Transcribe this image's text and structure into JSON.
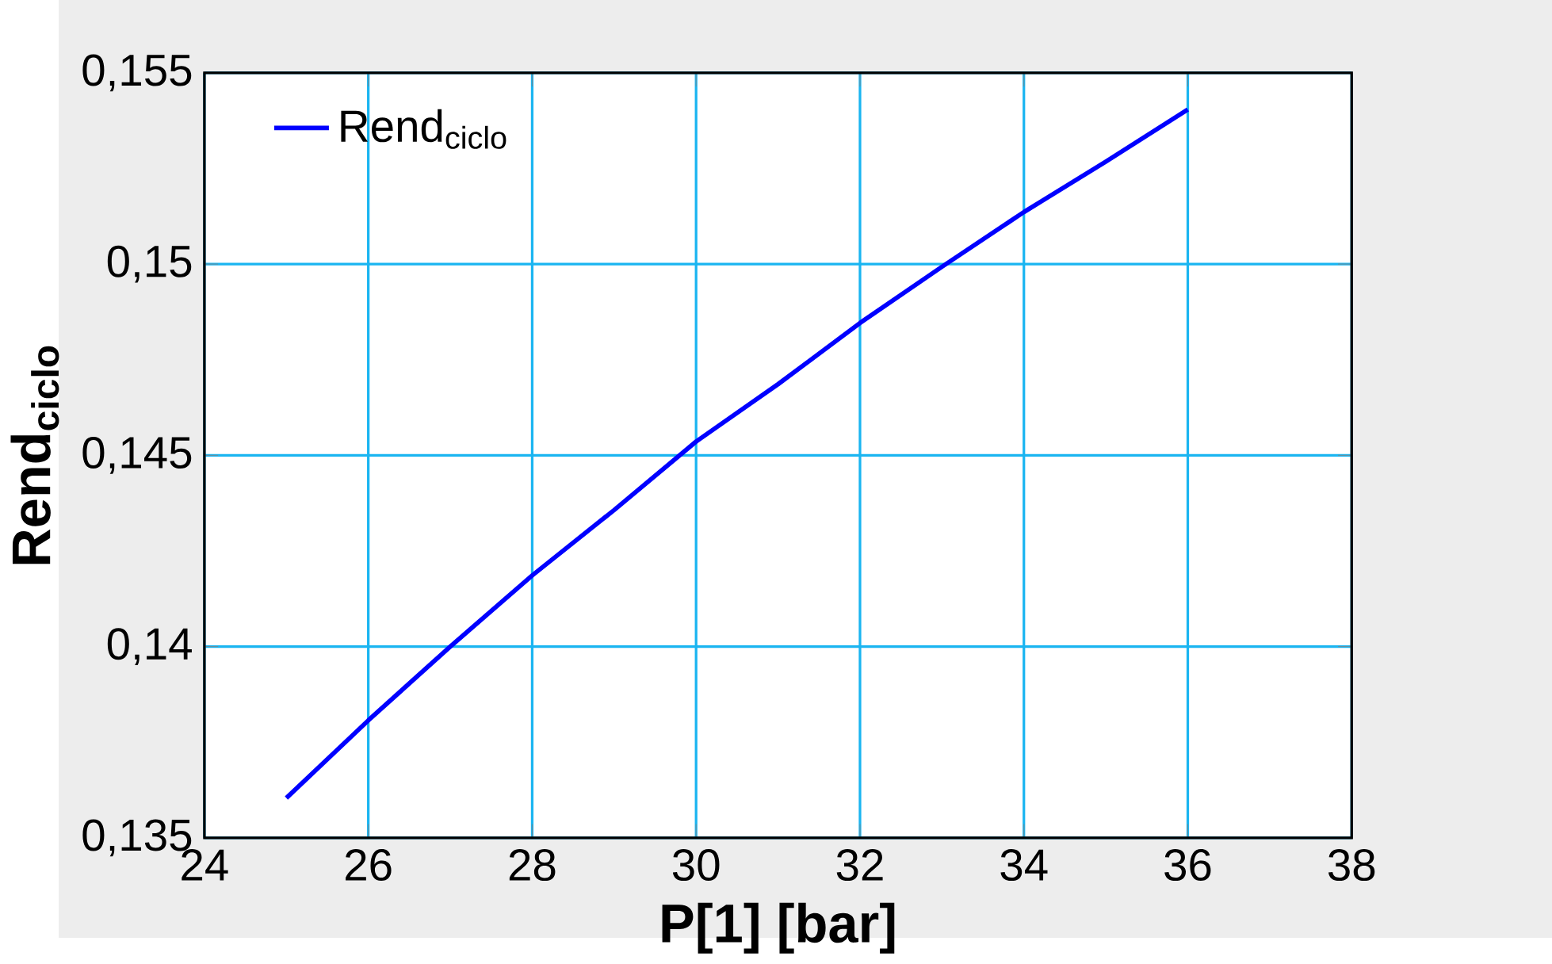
{
  "chart_data": {
    "type": "line",
    "xlabel": "P[1]  [bar]",
    "ylabel": "Rend$_{ciclo}$",
    "x": [
      25,
      26,
      27,
      28,
      29,
      30,
      31,
      32,
      33,
      34,
      35,
      36
    ],
    "series": [
      {
        "name": "Rend$_{ciclo}$",
        "color": "#0000ff",
        "values": [
          0.13604,
          0.13807,
          0.14,
          0.14186,
          0.14357,
          0.14536,
          0.14686,
          0.14846,
          0.14993,
          0.15136,
          0.15268,
          0.15404
        ]
      }
    ],
    "xlim": [
      24,
      38
    ],
    "ylim": [
      0.135,
      0.155
    ],
    "xticks": [
      24,
      26,
      28,
      30,
      32,
      34,
      36,
      38
    ],
    "yticks": [
      {
        "value": 0.135,
        "label": "0,135"
      },
      {
        "value": 0.14,
        "label": "0,14"
      },
      {
        "value": 0.145,
        "label": "0,145"
      },
      {
        "value": 0.15,
        "label": "0,15"
      },
      {
        "value": 0.155,
        "label": "0,155"
      }
    ],
    "grid": true,
    "legend": "top left",
    "marker": "none",
    "line_style": "solid"
  }
}
